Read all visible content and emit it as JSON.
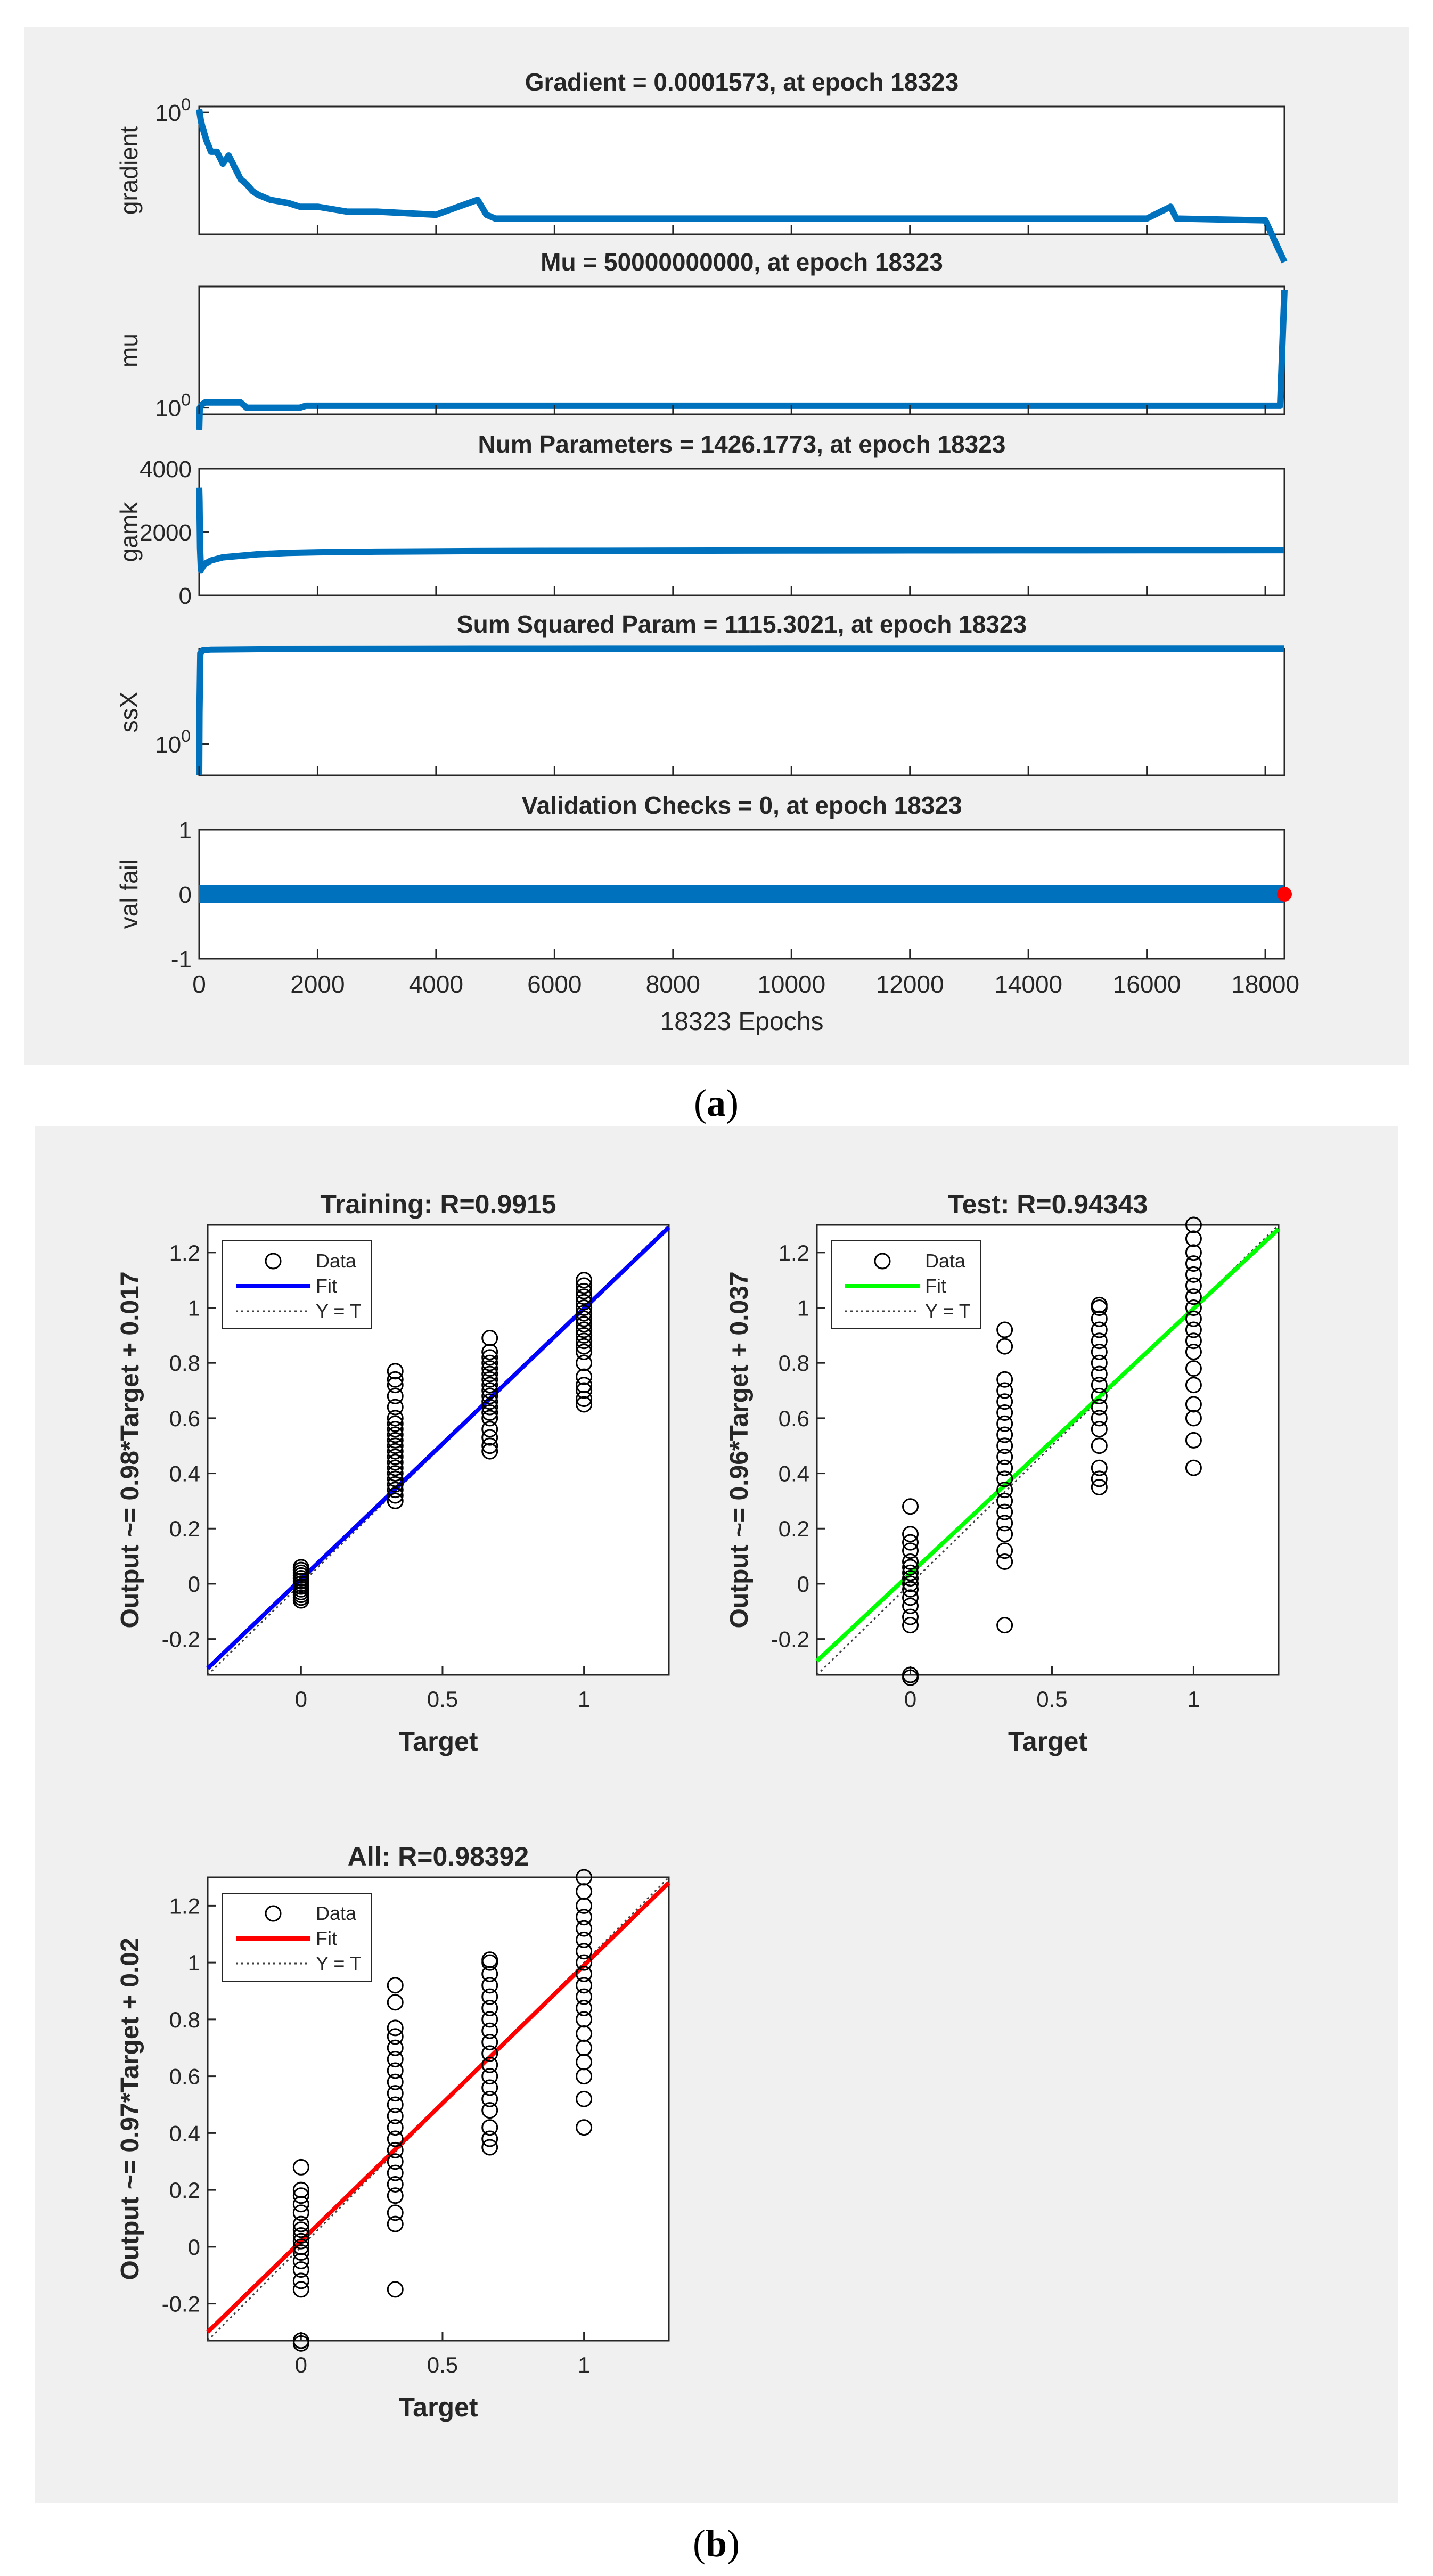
{
  "panel_a": {
    "caption_open": "(",
    "caption_letter": "a",
    "caption_close": ")",
    "colors": {
      "trace": "#0072BD",
      "marker": "#FF0000",
      "panel_bg": "#F0F0F0"
    }
  },
  "panel_b": {
    "caption_open": "(",
    "caption_letter": "b",
    "caption_close": ")"
  },
  "chart_data": [
    {
      "id": "gradient",
      "type": "line",
      "title": "Gradient = 0.0001573, at epoch 18323",
      "ylabel": "gradient",
      "yscale": "log",
      "yticklabels": [
        {
          "base": "10",
          "exp": "0",
          "value": 1
        }
      ],
      "xlim": [
        0,
        18323
      ],
      "x": [
        0,
        30,
        60,
        120,
        200,
        300,
        400,
        500,
        600,
        700,
        800,
        900,
        1000,
        1200,
        1500,
        1700,
        2000,
        2500,
        3000,
        4000,
        4700,
        4850,
        5000,
        6000,
        8000,
        10000,
        12000,
        14000,
        16000,
        16400,
        16500,
        18000,
        18323
      ],
      "y": [
        1.2,
        0.6,
        0.4,
        0.2,
        0.1,
        0.1,
        0.05,
        0.08,
        0.04,
        0.02,
        0.015,
        0.01,
        0.008,
        0.006,
        0.005,
        0.004,
        0.004,
        0.003,
        0.003,
        0.0025,
        0.006,
        0.0025,
        0.002,
        0.002,
        0.002,
        0.002,
        0.002,
        0.002,
        0.002,
        0.004,
        0.002,
        0.0018,
        0.0001573
      ]
    },
    {
      "id": "mu",
      "type": "line",
      "title": "Mu = 50000000000, at epoch 18323",
      "ylabel": "mu",
      "yscale": "log",
      "yticklabels": [
        {
          "base": "10",
          "exp": "0",
          "value": 1
        }
      ],
      "xlim": [
        0,
        18323
      ],
      "x": [
        0,
        10,
        50,
        100,
        700,
        800,
        900,
        1000,
        1200,
        1700,
        1800,
        4000,
        8000,
        12000,
        16000,
        18000,
        18250,
        18323
      ],
      "y": [
        0.01,
        1,
        2,
        3,
        3,
        1,
        1,
        1,
        1,
        1,
        1.5,
        1.5,
        1.5,
        1.5,
        1.5,
        1.5,
        1.5,
        50000000000
      ]
    },
    {
      "id": "gamk",
      "type": "line",
      "title": "Num Parameters = 1426.1773, at epoch 18323",
      "ylabel": "gamk",
      "ylim": [
        0,
        4000
      ],
      "yticks": [
        0,
        2000,
        4000
      ],
      "xlim": [
        0,
        18323
      ],
      "x": [
        0,
        5,
        15,
        30,
        60,
        100,
        200,
        400,
        700,
        1000,
        1500,
        2000,
        3000,
        5000,
        8000,
        10000,
        12000,
        14000,
        16000,
        18323
      ],
      "y": [
        3400,
        3000,
        1500,
        800,
        900,
        1000,
        1100,
        1200,
        1250,
        1300,
        1340,
        1360,
        1380,
        1400,
        1410,
        1415,
        1420,
        1422,
        1424,
        1426.1773
      ]
    },
    {
      "id": "ssX",
      "type": "line",
      "title": "Sum Squared Param = 1115.3021, at epoch 18323",
      "ylabel": "ssX",
      "yscale": "log",
      "yticklabels": [
        {
          "base": "10",
          "exp": "0",
          "value": 1
        }
      ],
      "xlim": [
        0,
        18323
      ],
      "x": [
        0,
        5,
        20,
        60,
        200,
        1000,
        5000,
        10000,
        15000,
        18323
      ],
      "y": [
        0.1,
        10,
        800,
        1000,
        1050,
        1080,
        1100,
        1110,
        1114,
        1115.3021
      ]
    },
    {
      "id": "val_fail",
      "type": "line",
      "title": "Validation Checks = 0, at epoch 18323",
      "ylabel": "val fail",
      "ylim": [
        -1,
        1
      ],
      "yticks": [
        -1,
        0,
        1
      ],
      "xlim": [
        0,
        18323
      ],
      "xticks": [
        0,
        2000,
        4000,
        6000,
        8000,
        10000,
        12000,
        14000,
        16000,
        18000
      ],
      "xlabel": "18323 Epochs",
      "x": [
        0,
        18323
      ],
      "y": [
        0,
        0
      ],
      "final_point": {
        "x": 18323,
        "y": 0
      }
    },
    {
      "id": "training",
      "type": "scatter",
      "title": "Training: R=0.9915",
      "xlabel": "Target",
      "ylabel": "Output ~= 0.98*Target + 0.017",
      "xlim": [
        -0.33,
        1.3
      ],
      "ylim": [
        -0.33,
        1.3
      ],
      "xticks": [
        0,
        0.5,
        1
      ],
      "yticks": [
        -0.2,
        0,
        0.2,
        0.4,
        0.6,
        0.8,
        1,
        1.2
      ],
      "fit": {
        "slope": 0.98,
        "intercept": 0.017,
        "color": "#0000FF"
      },
      "legend": [
        "Data",
        "Fit",
        "Y = T"
      ],
      "groups": [
        {
          "target": 0,
          "outputs": [
            -0.06,
            -0.05,
            -0.04,
            -0.03,
            -0.02,
            -0.01,
            0,
            0.01,
            0.02,
            0.03,
            0.04,
            0.05,
            0.06
          ]
        },
        {
          "target": 0.333,
          "outputs": [
            0.3,
            0.32,
            0.34,
            0.36,
            0.38,
            0.4,
            0.42,
            0.44,
            0.46,
            0.48,
            0.5,
            0.52,
            0.54,
            0.56,
            0.58,
            0.6,
            0.64,
            0.68,
            0.72,
            0.74,
            0.77
          ]
        },
        {
          "target": 0.667,
          "outputs": [
            0.48,
            0.5,
            0.53,
            0.56,
            0.6,
            0.62,
            0.64,
            0.66,
            0.68,
            0.7,
            0.72,
            0.74,
            0.76,
            0.78,
            0.8,
            0.82,
            0.84,
            0.89
          ]
        },
        {
          "target": 1,
          "outputs": [
            0.65,
            0.67,
            0.7,
            0.72,
            0.75,
            0.8,
            0.84,
            0.86,
            0.88,
            0.9,
            0.92,
            0.94,
            0.96,
            0.98,
            1,
            1.02,
            1.04,
            1.06,
            1.08,
            1.1
          ]
        }
      ]
    },
    {
      "id": "test",
      "type": "scatter",
      "title": "Test: R=0.94343",
      "xlabel": "Target",
      "ylabel": "Output ~= 0.96*Target + 0.037",
      "xlim": [
        -0.33,
        1.3
      ],
      "ylim": [
        -0.33,
        1.3
      ],
      "xticks": [
        0,
        0.5,
        1
      ],
      "yticks": [
        -0.2,
        0,
        0.2,
        0.4,
        0.6,
        0.8,
        1,
        1.2
      ],
      "fit": {
        "slope": 0.96,
        "intercept": 0.037,
        "color": "#00FF00"
      },
      "legend": [
        "Data",
        "Fit",
        "Y = T"
      ],
      "groups": [
        {
          "target": 0,
          "outputs": [
            -0.34,
            -0.33,
            -0.15,
            -0.12,
            -0.08,
            -0.05,
            -0.02,
            0,
            0.02,
            0.04,
            0.06,
            0.08,
            0.12,
            0.15,
            0.18,
            0.28
          ]
        },
        {
          "target": 0.333,
          "outputs": [
            -0.15,
            0.08,
            0.12,
            0.18,
            0.22,
            0.26,
            0.3,
            0.34,
            0.38,
            0.42,
            0.46,
            0.5,
            0.54,
            0.58,
            0.62,
            0.66,
            0.7,
            0.74,
            0.86,
            0.92
          ]
        },
        {
          "target": 0.667,
          "outputs": [
            0.35,
            0.38,
            0.42,
            0.5,
            0.56,
            0.6,
            0.64,
            0.68,
            0.72,
            0.76,
            0.8,
            0.84,
            0.88,
            0.92,
            0.96,
            1,
            1.01
          ]
        },
        {
          "target": 1,
          "outputs": [
            0.42,
            0.52,
            0.6,
            0.65,
            0.72,
            0.78,
            0.84,
            0.88,
            0.92,
            0.96,
            1,
            1.04,
            1.08,
            1.12,
            1.16,
            1.2,
            1.25,
            1.3
          ]
        }
      ]
    },
    {
      "id": "all",
      "type": "scatter",
      "title": "All: R=0.98392",
      "xlabel": "Target",
      "ylabel": "Output ~= 0.97*Target + 0.02",
      "xlim": [
        -0.33,
        1.3
      ],
      "ylim": [
        -0.33,
        1.3
      ],
      "xticks": [
        0,
        0.5,
        1
      ],
      "yticks": [
        -0.2,
        0,
        0.2,
        0.4,
        0.6,
        0.8,
        1,
        1.2
      ],
      "fit": {
        "slope": 0.97,
        "intercept": 0.02,
        "color": "#FF0000"
      },
      "legend": [
        "Data",
        "Fit",
        "Y = T"
      ],
      "groups": [
        {
          "target": 0,
          "outputs": [
            -0.34,
            -0.33,
            -0.15,
            -0.12,
            -0.08,
            -0.05,
            -0.02,
            0,
            0.02,
            0.04,
            0.06,
            0.08,
            0.12,
            0.15,
            0.18,
            0.2,
            0.28
          ]
        },
        {
          "target": 0.333,
          "outputs": [
            -0.15,
            0.08,
            0.12,
            0.18,
            0.22,
            0.26,
            0.3,
            0.34,
            0.38,
            0.42,
            0.46,
            0.5,
            0.54,
            0.58,
            0.62,
            0.66,
            0.7,
            0.74,
            0.77,
            0.86,
            0.92
          ]
        },
        {
          "target": 0.667,
          "outputs": [
            0.35,
            0.38,
            0.42,
            0.48,
            0.52,
            0.56,
            0.6,
            0.64,
            0.68,
            0.72,
            0.76,
            0.8,
            0.84,
            0.88,
            0.92,
            0.96,
            1,
            1.01
          ]
        },
        {
          "target": 1,
          "outputs": [
            0.42,
            0.52,
            0.6,
            0.65,
            0.7,
            0.75,
            0.8,
            0.84,
            0.88,
            0.92,
            0.96,
            1,
            1.04,
            1.08,
            1.12,
            1.16,
            1.2,
            1.25,
            1.3
          ]
        }
      ]
    }
  ]
}
